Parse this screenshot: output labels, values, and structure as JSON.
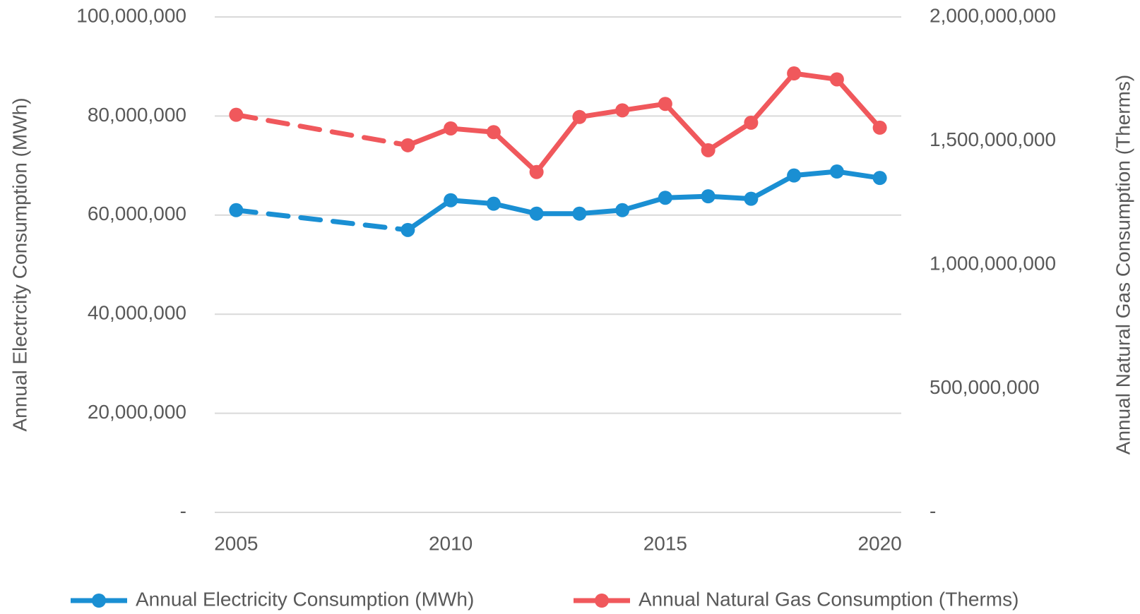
{
  "chart_data": {
    "type": "line",
    "x": [
      2005,
      2009,
      2010,
      2011,
      2012,
      2013,
      2014,
      2015,
      2016,
      2017,
      2018,
      2019,
      2020
    ],
    "series": [
      {
        "name": "Annual Electricity Consumption (MWh)",
        "color": "#1a8fd3",
        "values": [
          61000000,
          57000000,
          63000000,
          62300000,
          60300000,
          60300000,
          61000000,
          63500000,
          63800000,
          63300000,
          68000000,
          68800000,
          67500000
        ]
      },
      {
        "name": "Annual Natural Gas Consumption (Therms)",
        "color": "#f0585c",
        "axis": "y2",
        "values": [
          1605000000,
          1482000000,
          1550000000,
          1535000000,
          1374000000,
          1596000000,
          1623000000,
          1649000000,
          1462000000,
          1573000000,
          1772000000,
          1748000000,
          1553000000
        ]
      }
    ],
    "ylabel": "Annual Electrcity Consumption (MWh)",
    "y2label": "Annual Natural Gas Consumption (Therms)",
    "xlim": [
      2004.5,
      2020.5
    ],
    "xticks": [
      2005,
      2010,
      2015,
      2020
    ],
    "ylim": [
      0,
      100000000
    ],
    "yticks": [
      {
        "value": 0,
        "label": "-"
      },
      {
        "value": 20000000,
        "label": "20,000,000"
      },
      {
        "value": 40000000,
        "label": "40,000,000"
      },
      {
        "value": 60000000,
        "label": "60,000,000"
      },
      {
        "value": 80000000,
        "label": "80,000,000"
      },
      {
        "value": 100000000,
        "label": "100,000,000"
      }
    ],
    "y2lim": [
      0,
      2000000000
    ],
    "y2ticks": [
      {
        "value": 0,
        "label": "-"
      },
      {
        "value": 500000000,
        "label": "500,000,000"
      },
      {
        "value": 1000000000,
        "label": "1,000,000,000"
      },
      {
        "value": 1500000000,
        "label": "1,500,000,000"
      },
      {
        "value": 2000000000,
        "label": "2,000,000,000"
      }
    ],
    "grid": true,
    "legend": "bottom"
  }
}
